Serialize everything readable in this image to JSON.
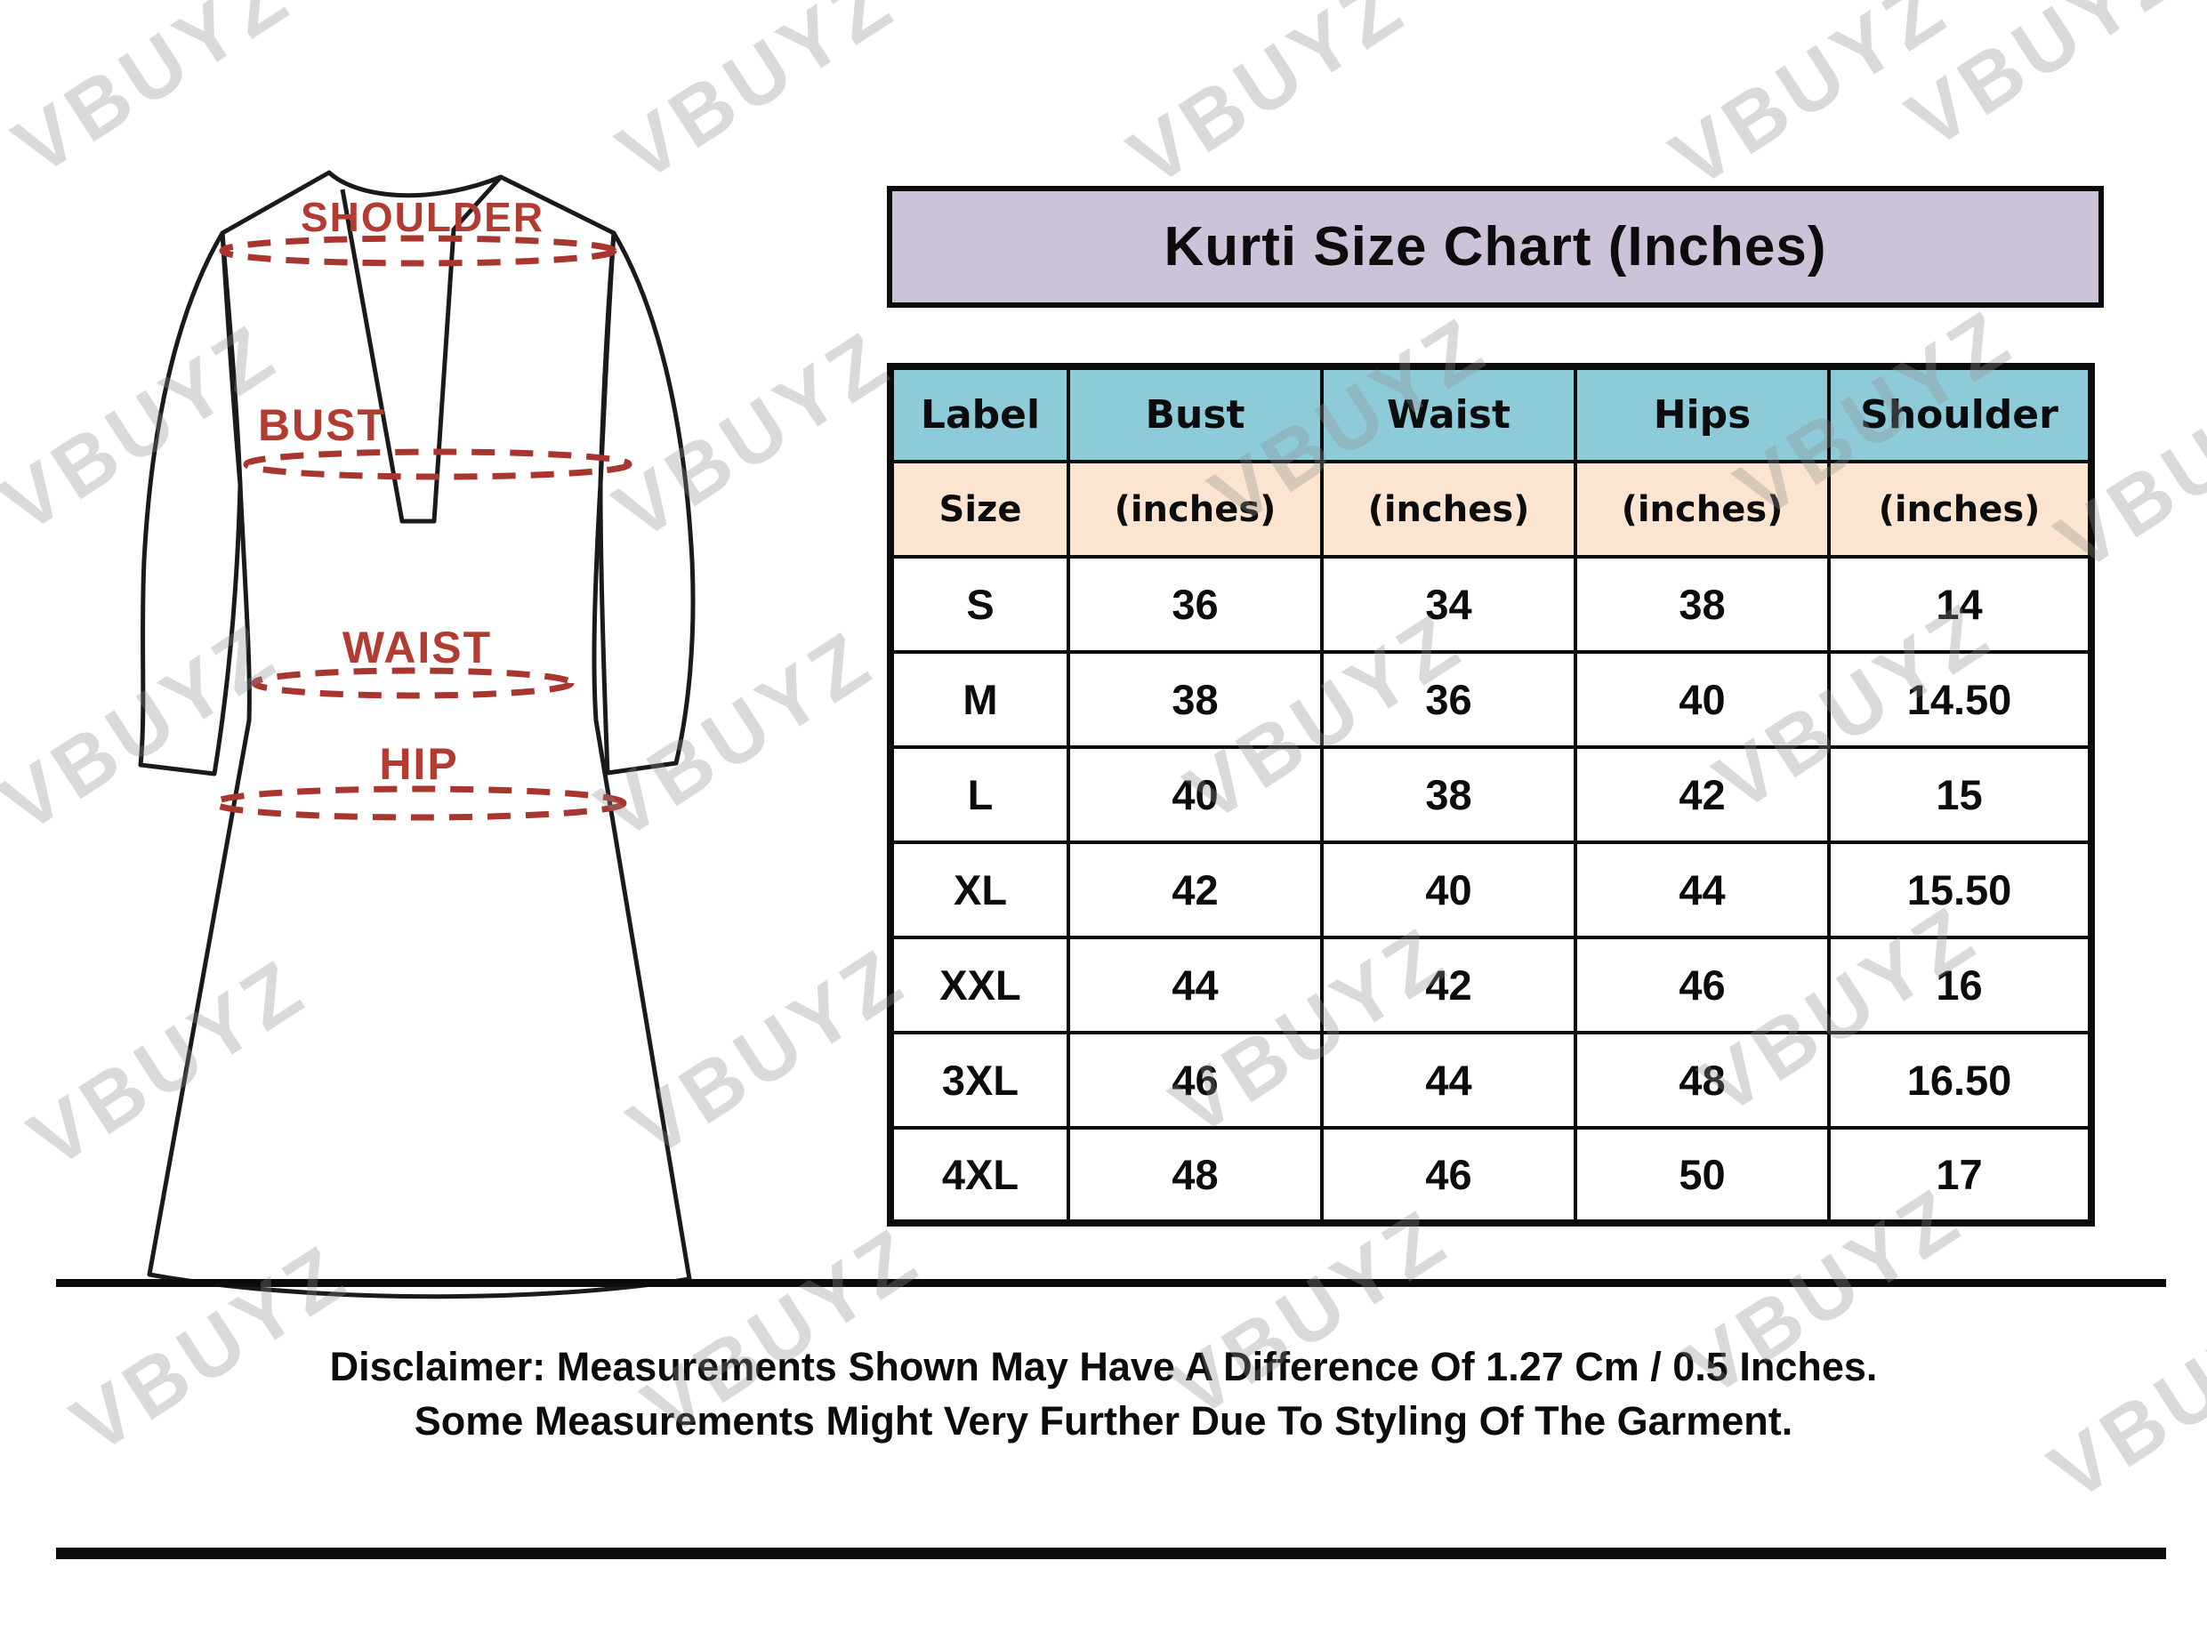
{
  "title": "Kurti Size Chart (Inches)",
  "watermark": {
    "text": "VBUYZ"
  },
  "diagram": {
    "shoulder_label": "SHOULDER",
    "bust_label": "BUST",
    "waist_label": "WAIST",
    "hip_label": "HIP"
  },
  "table": {
    "columns": [
      {
        "label": "Label",
        "sub": "Size"
      },
      {
        "label": "Bust",
        "sub": "(inches)"
      },
      {
        "label": "Waist",
        "sub": "(inches)"
      },
      {
        "label": "Hips",
        "sub": "(inches)"
      },
      {
        "label": "Shoulder",
        "sub": "(inches)"
      }
    ],
    "rows": [
      [
        "S",
        "36",
        "34",
        "38",
        "14"
      ],
      [
        "M",
        "38",
        "36",
        "40",
        "14.50"
      ],
      [
        "L",
        "40",
        "38",
        "42",
        "15"
      ],
      [
        "XL",
        "42",
        "40",
        "44",
        "15.50"
      ],
      [
        "XXL",
        "44",
        "42",
        "46",
        "16"
      ],
      [
        "3XL",
        "46",
        "44",
        "48",
        "16.50"
      ],
      [
        "4XL",
        "48",
        "46",
        "50",
        "17"
      ]
    ]
  },
  "disclaimer": {
    "line1": "Disclaimer: Measurements Shown May Have A Difference Of 1.27 Cm / 0.5 Inches.",
    "line2": "Some Measurements Might Very Further Due To Styling Of The Garment."
  },
  "colors": {
    "title_bg": "#ccc3d9",
    "header_blue": "#8ecbd9",
    "header_peach": "#fbe5d0",
    "label_red": "#b23b32",
    "dash_red": "#a8362e",
    "outline": "#1a1a1a",
    "watermark_gray": "#8f8f8f"
  },
  "chart_data": {
    "type": "table",
    "title": "Kurti Size Chart (Inches)",
    "columns": [
      "Label Size",
      "Bust (inches)",
      "Waist (inches)",
      "Hips (inches)",
      "Shoulder (inches)"
    ],
    "rows": [
      [
        "S",
        36,
        34,
        38,
        14
      ],
      [
        "M",
        38,
        36,
        40,
        14.5
      ],
      [
        "L",
        40,
        38,
        42,
        15
      ],
      [
        "XL",
        42,
        40,
        44,
        15.5
      ],
      [
        "XXL",
        44,
        42,
        46,
        16
      ],
      [
        "3XL",
        46,
        44,
        48,
        16.5
      ],
      [
        "4XL",
        48,
        46,
        50,
        17
      ]
    ],
    "notes": "Measurement loops marked on garment diagram at shoulder, bust, waist and hip"
  }
}
